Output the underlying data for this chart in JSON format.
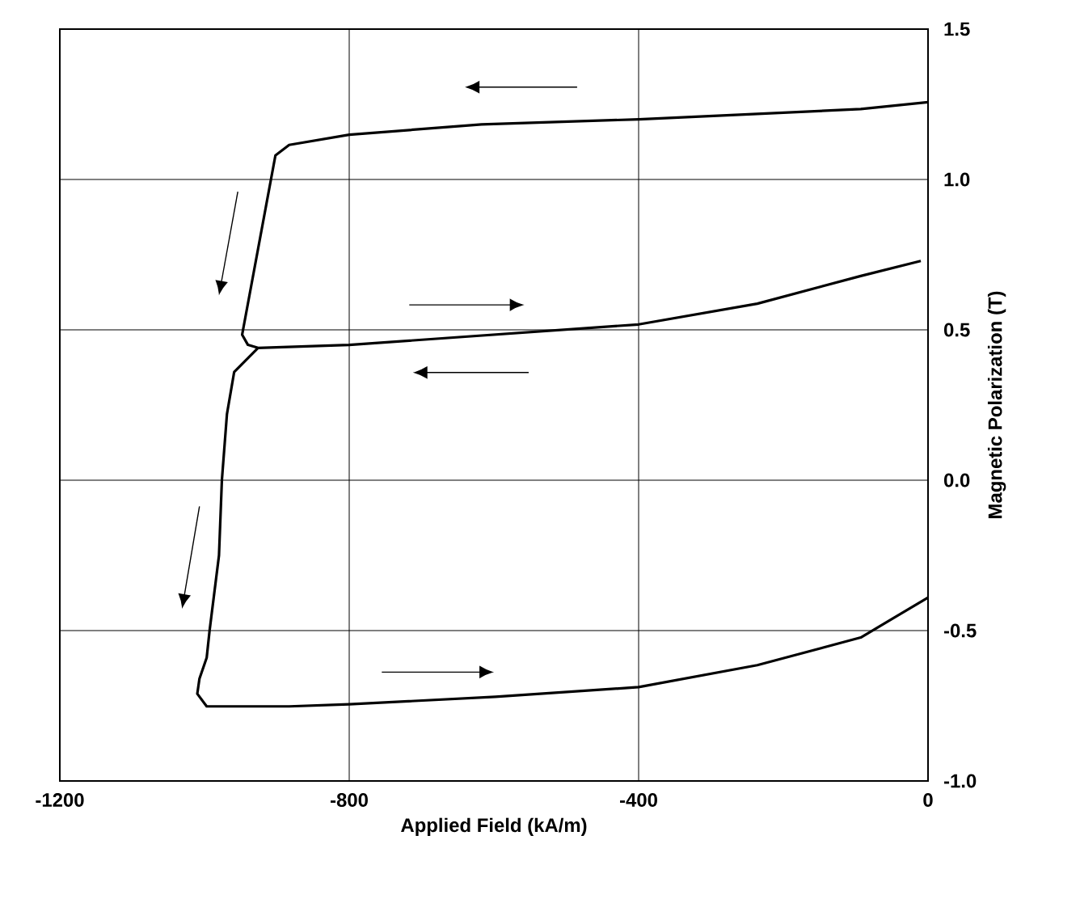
{
  "chart_data": {
    "type": "line",
    "xlabel": "Applied Field (kA/m)",
    "ylabel": "Magnetic Polarization (T)",
    "xlim": [
      -1200,
      0
    ],
    "ylim": [
      -1.0,
      1.5
    ],
    "xticks": [
      -1200,
      -800,
      -400,
      0
    ],
    "yticks": [
      {
        "value": -1.0,
        "label": "-1.0"
      },
      -0.5,
      {
        "value": 0.0,
        "label": "0.0"
      },
      0.5,
      {
        "value": 1.0,
        "label": "1.0"
      },
      1.5
    ],
    "grid": true,
    "series": [
      {
        "color": "#000000",
        "x": [
          0,
          -93,
          -236,
          -400,
          -617,
          -800,
          -883,
          -902,
          -948,
          -940,
          -926,
          -800,
          -400,
          -236,
          -93,
          -10
        ],
        "values": [
          1.257,
          1.234,
          1.218,
          1.2,
          1.183,
          1.149,
          1.115,
          1.08,
          0.484,
          0.45,
          0.44,
          0.45,
          0.518,
          0.587,
          0.679,
          0.729
        ]
      },
      {
        "color": "#000000",
        "x": [
          -926,
          -959,
          -969,
          -976,
          -980,
          -993,
          -997,
          -1007,
          -1010,
          -997,
          -883,
          -800,
          -598,
          -400,
          -236,
          -93,
          0
        ],
        "values": [
          0.44,
          0.36,
          0.22,
          0.0,
          -0.25,
          -0.5,
          -0.59,
          -0.66,
          -0.71,
          -0.752,
          -0.752,
          -0.745,
          -0.72,
          -0.688,
          -0.615,
          -0.523,
          -0.39
        ]
      }
    ]
  }
}
